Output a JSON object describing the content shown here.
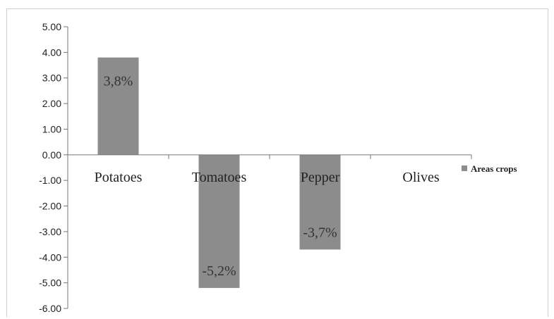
{
  "chart_data": {
    "type": "bar",
    "categories": [
      "Potatoes",
      "Tomatoes",
      "Pepper",
      "Olives"
    ],
    "series": [
      {
        "name": "Areas crops",
        "values": [
          3.8,
          -5.2,
          -3.7,
          0
        ]
      }
    ],
    "data_labels": [
      "3,8%",
      "-5,2%",
      "-3,7%",
      ""
    ],
    "y_ticks": [
      "5.00",
      "4.00",
      "3.00",
      "2.00",
      "1.00",
      "0.00",
      "-1.00",
      "-2.00",
      "-3.00",
      "-4.00",
      "-5.00",
      "-6.00"
    ],
    "ylim": [
      -6,
      5
    ],
    "title": "",
    "xlabel": "",
    "ylabel": "",
    "grid": false,
    "legend_position": "right",
    "colors": {
      "bar": "#8c8c8c",
      "axis": "#777777"
    }
  }
}
